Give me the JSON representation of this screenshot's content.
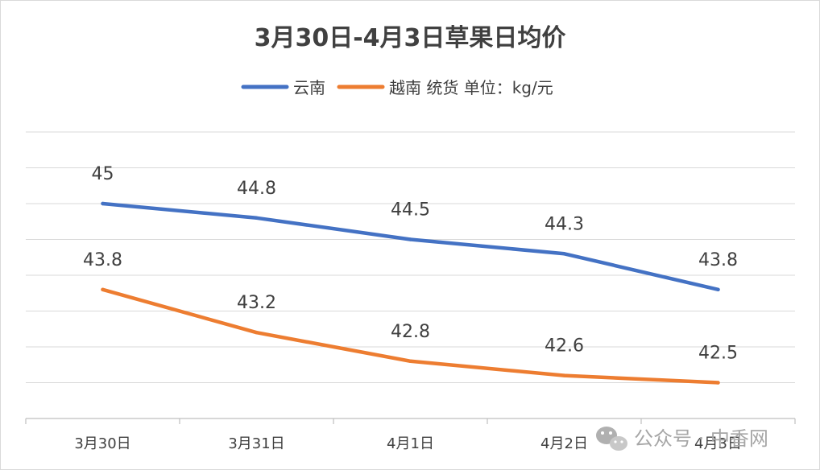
{
  "chart_data": {
    "type": "line",
    "title": "3月30日-4月3日草果日均价",
    "categories": [
      "3月30日",
      "3月31日",
      "4月1日",
      "4月2日",
      "4月3日"
    ],
    "series": [
      {
        "name": "云南",
        "values": [
          45,
          44.8,
          44.5,
          44.3,
          43.8
        ],
        "labels": [
          "45",
          "44.8",
          "44.5",
          "44.3",
          "43.8"
        ],
        "color": "#4472C4"
      },
      {
        "name": "越南 统货 单位：kg/元",
        "values": [
          43.8,
          43.2,
          42.8,
          42.6,
          42.5
        ],
        "labels": [
          "43.8",
          "43.2",
          "42.8",
          "42.6",
          "42.5"
        ],
        "color": "#ED7D31"
      }
    ],
    "ylim": [
      42,
      46
    ],
    "gridlines": 9,
    "grid": true,
    "legend_position": "top"
  },
  "watermark": {
    "text": "公众号 · 中香网",
    "icon": "wechat-icon"
  }
}
